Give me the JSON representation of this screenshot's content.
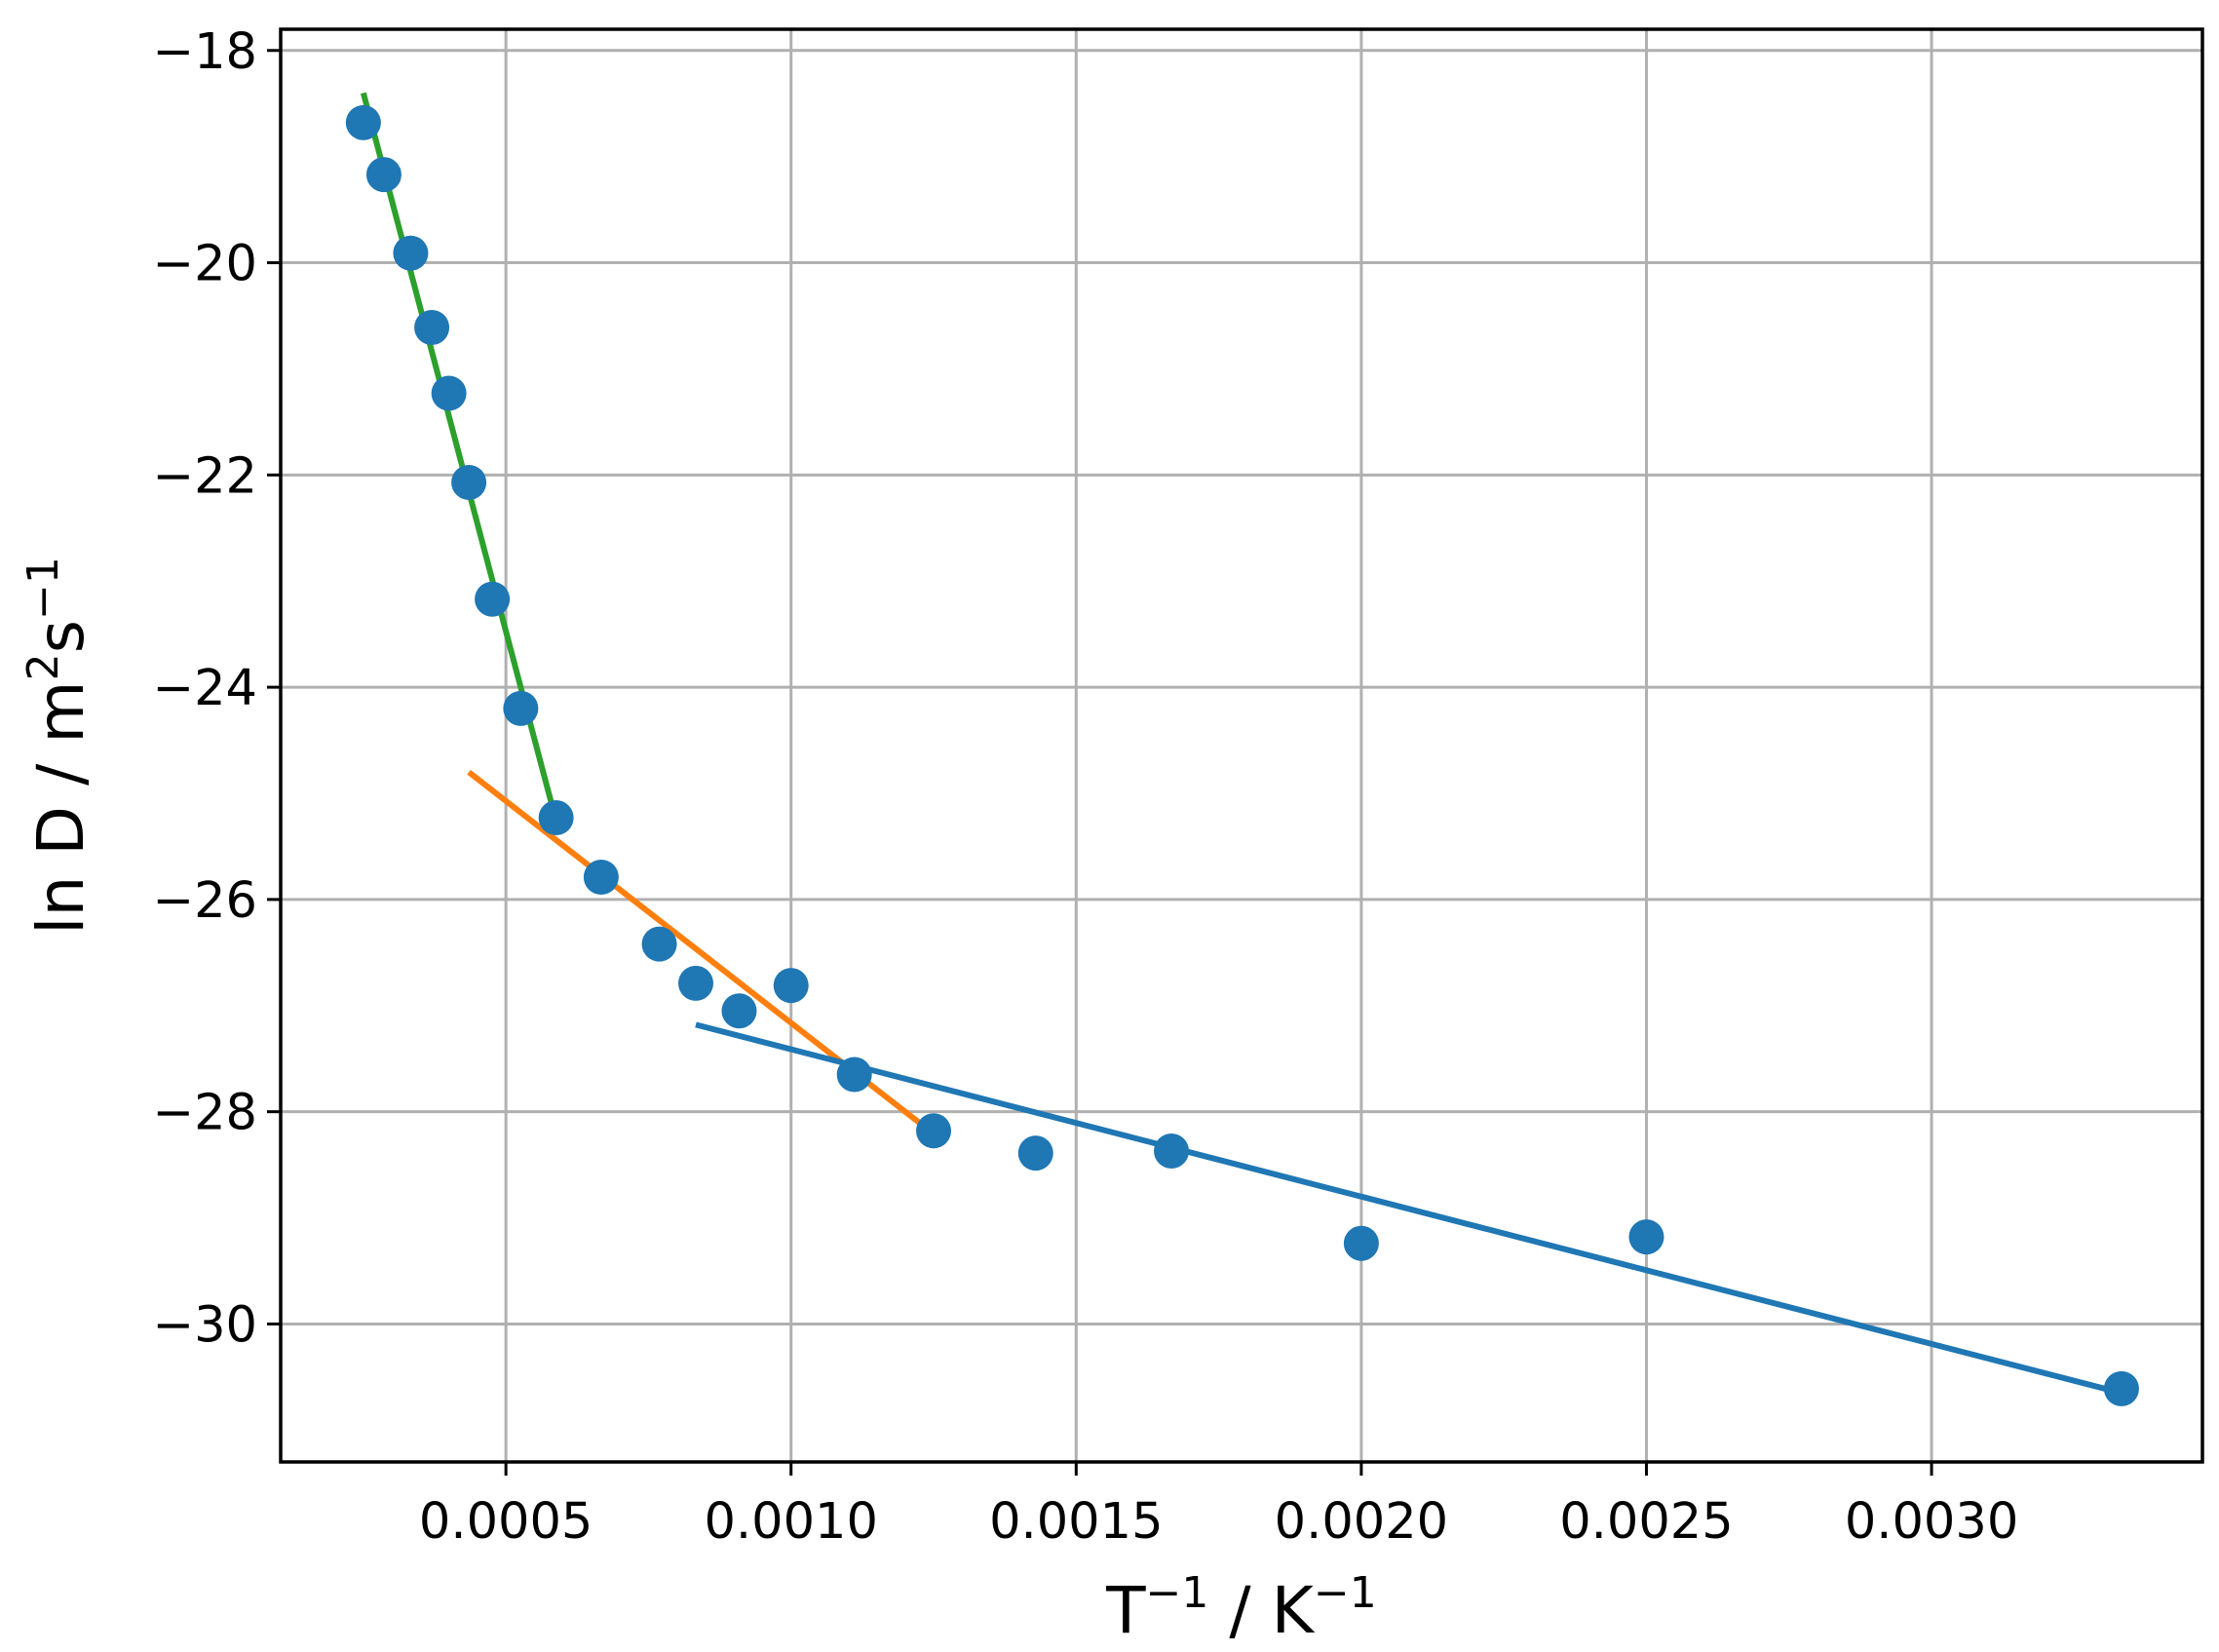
{
  "chart_data": {
    "type": "scatter",
    "title": "",
    "xlabel": {
      "base": "T",
      "exp": "−1",
      "sep": " / ",
      "unit": "K",
      "unit_exp": "−1"
    },
    "ylabel": {
      "prefix": "ln D / m",
      "exp1": "2",
      "mid": "s",
      "exp2": "−1"
    },
    "xlim": [
      0.000105,
      0.003475
    ],
    "ylim": [
      -31.3,
      -17.8
    ],
    "xticks": [
      0.0005,
      0.001,
      0.0015,
      0.002,
      0.0025,
      0.003
    ],
    "xtick_labels": [
      "0.0005",
      "0.0010",
      "0.0015",
      "0.0020",
      "0.0025",
      "0.0030"
    ],
    "yticks": [
      -18,
      -20,
      -22,
      -24,
      -26,
      -28,
      -30
    ],
    "ytick_labels": [
      "−18",
      "−20",
      "−22",
      "−24",
      "−26",
      "−28",
      "−30"
    ],
    "grid": true,
    "legend": "none",
    "points": {
      "color": "#1f77b4",
      "x": [
        0.00025,
        0.000286,
        0.000333,
        0.00037,
        0.0004,
        0.000435,
        0.000476,
        0.000526,
        0.000588,
        0.000667,
        0.000769,
        0.000833,
        0.000909,
        0.001,
        0.001111,
        0.00125,
        0.001429,
        0.001667,
        0.002,
        0.0025,
        0.003333
      ],
      "y": [
        -18.68,
        -19.17,
        -19.91,
        -20.61,
        -21.23,
        -22.07,
        -23.17,
        -24.2,
        -25.23,
        -25.79,
        -26.42,
        -26.79,
        -27.05,
        -26.81,
        -27.65,
        -28.18,
        -28.39,
        -28.37,
        -29.24,
        -29.18,
        -30.61
      ]
    },
    "fit_lines": [
      {
        "color": "#2ca02c",
        "x": [
          0.00025,
          0.00059
        ],
        "y": [
          -18.4,
          -25.3
        ]
      },
      {
        "color": "#ff7f0e",
        "x": [
          0.000435,
          0.00126
        ],
        "y": [
          -24.8,
          -28.25
        ]
      },
      {
        "color": "#1f77b4",
        "x": [
          0.000833,
          0.003333
        ],
        "y": [
          -27.18,
          -30.65
        ]
      }
    ]
  }
}
